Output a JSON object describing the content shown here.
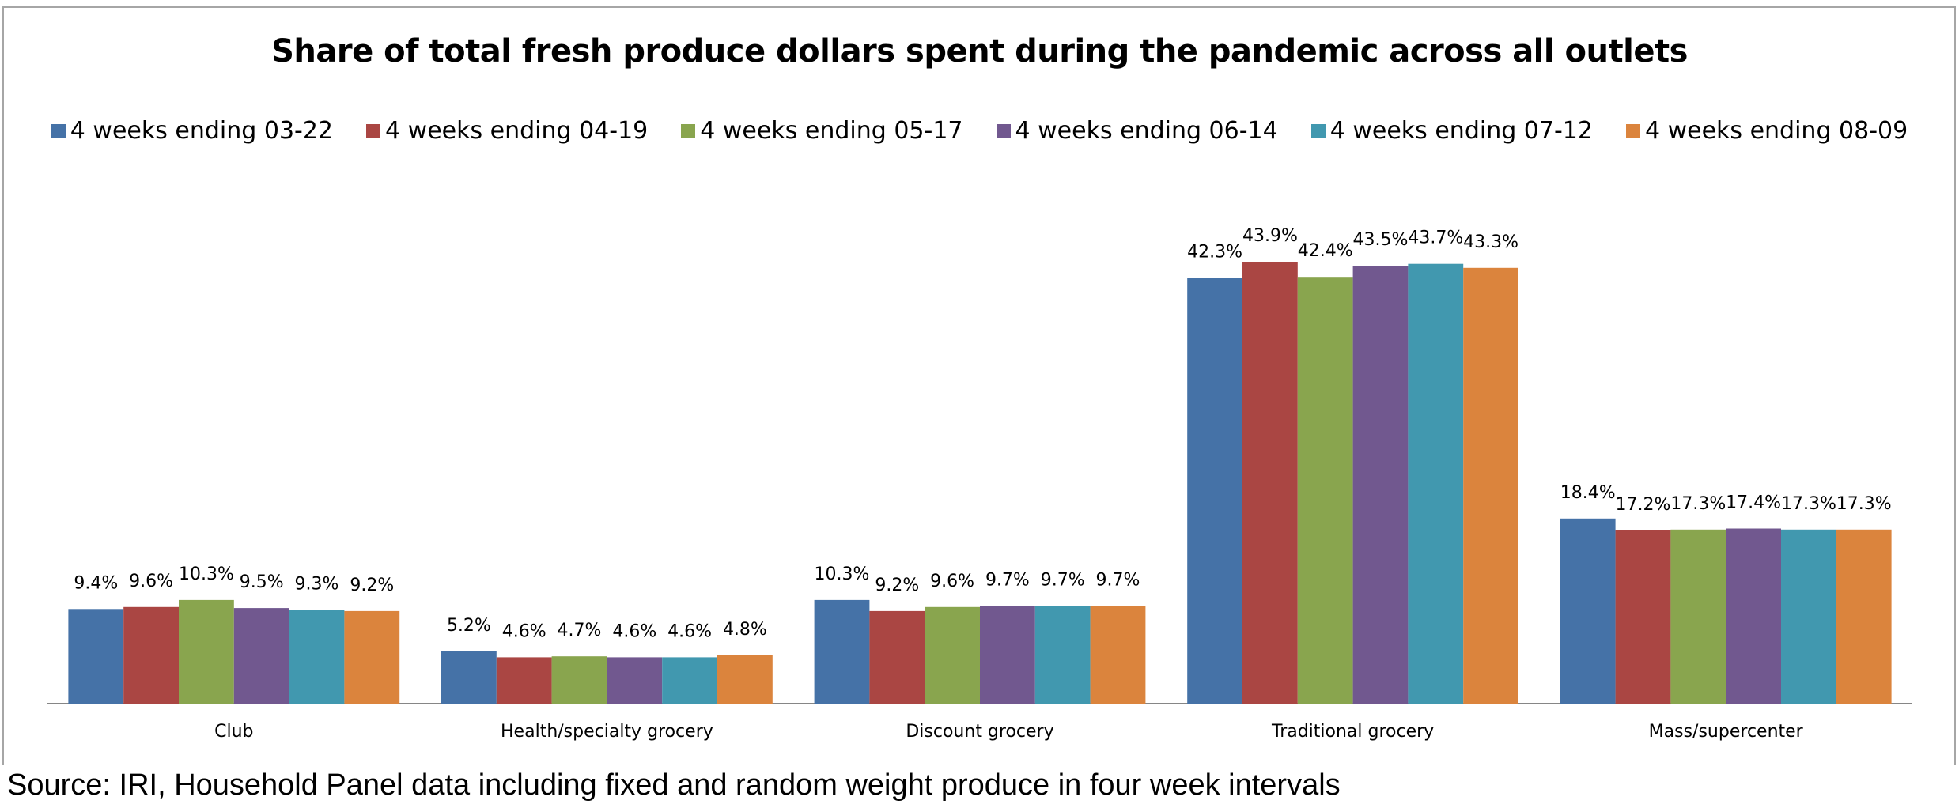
{
  "chart_data": {
    "type": "bar",
    "title": "Share of total fresh produce dollars spent during the pandemic across all outlets",
    "categories": [
      "Club",
      "Health/specialty grocery",
      "Discount grocery",
      "Traditional grocery",
      "Mass/supercenter"
    ],
    "series": [
      {
        "name": "4 weeks ending 03-22",
        "color": "#4572a7",
        "values": [
          9.4,
          5.2,
          10.3,
          42.3,
          18.4
        ]
      },
      {
        "name": "4 weeks ending 04-19",
        "color": "#aa4643",
        "values": [
          9.6,
          4.6,
          9.2,
          43.9,
          17.2
        ]
      },
      {
        "name": "4 weeks ending 05-17",
        "color": "#89a54e",
        "values": [
          10.3,
          4.7,
          9.6,
          42.4,
          17.3
        ]
      },
      {
        "name": "4 weeks ending 06-14",
        "color": "#71588f",
        "values": [
          9.5,
          4.6,
          9.7,
          43.5,
          17.4
        ]
      },
      {
        "name": "4 weeks ending 07-12",
        "color": "#4198af",
        "values": [
          9.3,
          4.6,
          9.7,
          43.7,
          17.3
        ]
      },
      {
        "name": "4 weeks ending 08-09",
        "color": "#db843d",
        "values": [
          9.2,
          4.8,
          9.7,
          43.3,
          17.3
        ]
      }
    ],
    "value_suffix": "%",
    "ylim": [
      0,
      50
    ],
    "xlabel": "",
    "ylabel": "",
    "grid": false,
    "legend_position": "top"
  },
  "source": "Source: IRI, Household Panel data including fixed and random weight produce in four week intervals"
}
